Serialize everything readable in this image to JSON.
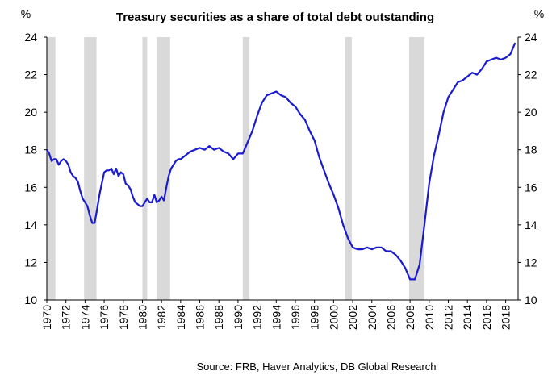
{
  "chart_data": {
    "type": "line",
    "title": "Treasury securities as a share of total debt outstanding",
    "left_unit": "%",
    "right_unit": "%",
    "source": "Source: FRB, Haver Analytics, DB Global  Research",
    "ylim": [
      10,
      24
    ],
    "yticks": [
      10,
      12,
      14,
      16,
      18,
      20,
      22,
      24
    ],
    "xlim": [
      1970,
      2019.3
    ],
    "xticks": [
      1970,
      1972,
      1974,
      1976,
      1978,
      1980,
      1982,
      1984,
      1986,
      1988,
      1990,
      1992,
      1994,
      1996,
      1998,
      2000,
      2002,
      2004,
      2006,
      2008,
      2010,
      2012,
      2014,
      2016,
      2018
    ],
    "grid": false,
    "line_color": "#1a1ad0",
    "recession_color": "#d9d9d9",
    "recessions": [
      [
        1970.0,
        1970.9
      ],
      [
        1973.9,
        1975.2
      ],
      [
        1980.0,
        1980.5
      ],
      [
        1981.5,
        1982.9
      ],
      [
        1990.5,
        1991.2
      ],
      [
        2001.2,
        2001.9
      ],
      [
        2007.9,
        2009.5
      ]
    ],
    "series": [
      {
        "x": [
          1970.0,
          1970.25,
          1970.5,
          1970.75,
          1971.0,
          1971.25,
          1971.5,
          1971.75,
          1972.0,
          1972.25,
          1972.5,
          1972.75,
          1973.0,
          1973.25,
          1973.5,
          1973.75,
          1974.0,
          1974.25,
          1974.5,
          1974.75,
          1975.0,
          1975.25,
          1975.5,
          1975.75,
          1976.0,
          1976.25,
          1976.5,
          1976.75,
          1977.0,
          1977.25,
          1977.5,
          1977.75,
          1978.0,
          1978.25,
          1978.5,
          1978.75,
          1979.0,
          1979.25,
          1979.5,
          1979.75,
          1980.0,
          1980.25,
          1980.5,
          1980.75,
          1981.0,
          1981.25,
          1981.5,
          1981.75,
          1982.0,
          1982.25,
          1982.5,
          1982.75,
          1983.0,
          1983.25,
          1983.5,
          1983.75,
          1984.0,
          1984.5,
          1985.0,
          1985.5,
          1986.0,
          1986.5,
          1987.0,
          1987.5,
          1988.0,
          1988.5,
          1989.0,
          1989.5,
          1990.0,
          1990.5,
          1991.0,
          1991.5,
          1992.0,
          1992.5,
          1993.0,
          1993.5,
          1994.0,
          1994.5,
          1995.0,
          1995.5,
          1996.0,
          1996.5,
          1997.0,
          1997.5,
          1998.0,
          1998.5,
          1999.0,
          1999.5,
          2000.0,
          2000.5,
          2001.0,
          2001.5,
          2002.0,
          2002.5,
          2003.0,
          2003.5,
          2004.0,
          2004.5,
          2005.0,
          2005.5,
          2006.0,
          2006.5,
          2007.0,
          2007.5,
          2008.0,
          2008.5,
          2009.0,
          2009.5,
          2010.0,
          2010.5,
          2011.0,
          2011.5,
          2012.0,
          2012.5,
          2013.0,
          2013.5,
          2014.0,
          2014.5,
          2015.0,
          2015.5,
          2016.0,
          2016.5,
          2017.0,
          2017.5,
          2018.0,
          2018.5,
          2019.0
        ],
        "values": [
          18.0,
          17.8,
          17.4,
          17.5,
          17.5,
          17.2,
          17.4,
          17.5,
          17.4,
          17.2,
          16.8,
          16.6,
          16.5,
          16.3,
          15.8,
          15.4,
          15.2,
          15.0,
          14.5,
          14.1,
          14.1,
          14.8,
          15.6,
          16.2,
          16.8,
          16.9,
          16.9,
          17.0,
          16.7,
          17.0,
          16.6,
          16.8,
          16.7,
          16.2,
          16.1,
          15.9,
          15.5,
          15.2,
          15.1,
          15.0,
          15.0,
          15.2,
          15.4,
          15.2,
          15.2,
          15.6,
          15.2,
          15.3,
          15.5,
          15.3,
          16.0,
          16.6,
          17.0,
          17.2,
          17.4,
          17.5,
          17.5,
          17.7,
          17.9,
          18.0,
          18.1,
          18.0,
          18.2,
          18.0,
          18.1,
          17.9,
          17.8,
          17.5,
          17.8,
          17.8,
          18.4,
          19.0,
          19.8,
          20.5,
          20.9,
          21.0,
          21.1,
          20.9,
          20.8,
          20.5,
          20.3,
          19.9,
          19.6,
          19.0,
          18.5,
          17.6,
          16.9,
          16.2,
          15.6,
          14.9,
          14.0,
          13.3,
          12.8,
          12.7,
          12.7,
          12.8,
          12.7,
          12.8,
          12.8,
          12.6,
          12.6,
          12.4,
          12.1,
          11.7,
          11.1,
          11.1,
          11.9,
          14.0,
          16.2,
          17.7,
          18.8,
          20.0,
          20.8,
          21.2,
          21.6,
          21.7,
          21.9,
          22.1,
          22.0,
          22.3,
          22.7,
          22.8,
          22.9,
          22.8,
          22.9,
          23.1,
          23.7
        ]
      }
    ]
  }
}
